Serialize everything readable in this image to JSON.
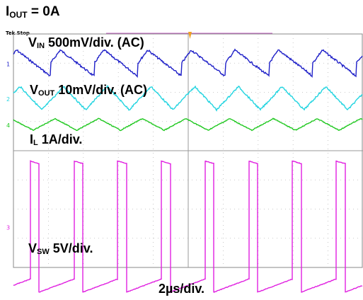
{
  "header": {
    "title_main": "I",
    "title_sub": "OUT",
    "title_rest": " = 0A"
  },
  "scope": {
    "status": "Tek Stop",
    "timebase": "2µs/div."
  },
  "chart_data": {
    "type": "line",
    "title": "IOUT = 0A",
    "xlabel": "2µs/div.",
    "x_divisions": 10,
    "y_divisions": 8,
    "x_unit": "div",
    "grid": true,
    "series": [
      {
        "name": "VIN 500mV/div. (AC)",
        "label_main": "V",
        "label_sub": "IN",
        "label_rest": "  500mV/div. (AC)",
        "color": "#1f20c8",
        "channel": "1",
        "shape": "rising-sawtooth",
        "period_div": 1.25,
        "amplitude_div": 0.45,
        "offset_div": 3.0
      },
      {
        "name": "VOUT 10mV/div. (AC)",
        "label_main": "V",
        "label_sub": "OUT",
        "label_rest": "  10mV/div. (AC)",
        "color": "#22d4e0",
        "channel": "2",
        "shape": "triangle",
        "period_div": 1.25,
        "amplitude_div": 0.4,
        "offset_div": 1.8
      },
      {
        "name": "IL 1A/div.",
        "label_main": "I",
        "label_sub": "L",
        "label_rest": "  1A/div.",
        "color": "#20c820",
        "channel": "4",
        "shape": "triangle",
        "period_div": 1.25,
        "amplitude_div": 0.2,
        "offset_div": 0.9
      },
      {
        "name": "VSW 5V/div.",
        "label_main": "V",
        "label_sub": "SW",
        "label_rest": " 5V/div.",
        "color": "#e020e0",
        "channel": "3",
        "shape": "switching-pulse",
        "period_div": 1.25,
        "amplitude_div": 2.25,
        "offset_div": -2.6
      }
    ]
  }
}
